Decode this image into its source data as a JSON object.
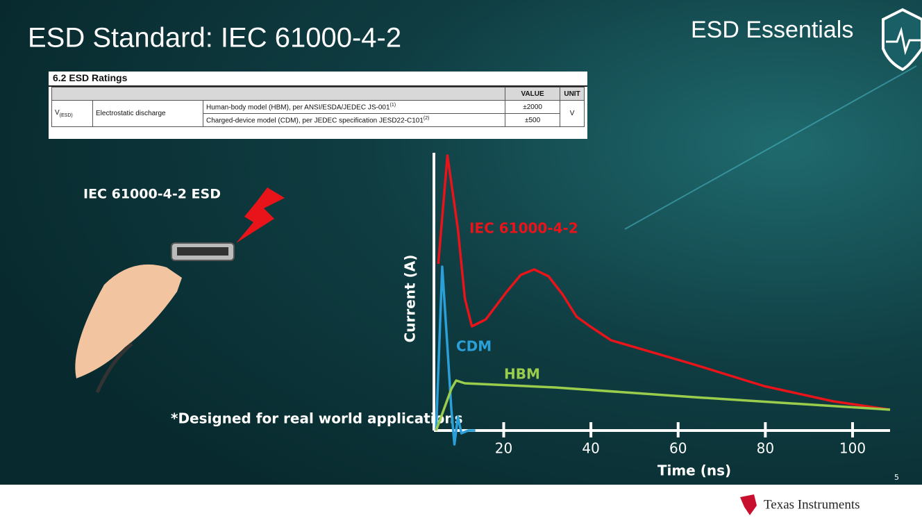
{
  "header": {
    "title": "ESD Standard: IEC 61000-4-2",
    "brand": "ESD Essentials"
  },
  "table": {
    "caption": "6.2 ESD Ratings",
    "headers": [
      "VALUE",
      "UNIT"
    ],
    "symbol": "V",
    "symbol_sub": "(ESD)",
    "parameter": "Electrostatic discharge",
    "rows": [
      {
        "condition": "Human-body model (HBM), per ANSI/ESDA/JEDEC JS-001",
        "note": "(1)",
        "value": "±2000"
      },
      {
        "condition": "Charged-device model (CDM), per JEDEC specification JESD22-C101",
        "note": "(2)",
        "value": "±500"
      }
    ],
    "unit": "V"
  },
  "illustration_label": "IEC 61000-4-2 ESD",
  "footnote": "*Designed for real world applications",
  "page_number": "5",
  "company": "Texas Instruments",
  "chart_data": {
    "type": "line",
    "x_label": "Time (ns)",
    "y_label": "Current (A)",
    "xlim": [
      4,
      108.6
    ],
    "xticks": [
      20,
      40,
      60,
      80,
      100
    ],
    "ylim": [
      -6,
      100
    ],
    "series": [
      {
        "name": "IEC 61000-4-2",
        "color": "#e8141a",
        "x": [
          5,
          7.1,
          9.5,
          11.1,
          12.7,
          15.9,
          20.7,
          23.9,
          27,
          30.3,
          33.5,
          36.7,
          39.8,
          44.6,
          63.7,
          79.7,
          95.6,
          108.6
        ],
        "values": [
          60,
          99,
          72.5,
          47.5,
          37.5,
          40,
          50,
          56,
          58,
          55.5,
          49,
          41,
          37.5,
          32.5,
          23.75,
          16,
          10.5,
          7.5
        ]
      },
      {
        "name": "CDM",
        "color": "#2a9fd8",
        "x": [
          4.5,
          5.9,
          7.1,
          8,
          8.7,
          9.5,
          10.3,
          11.9,
          13.5
        ],
        "values": [
          0,
          59,
          30,
          7.5,
          -5,
          5,
          -1,
          0,
          0
        ]
      },
      {
        "name": "HBM",
        "color": "#9acd4c",
        "x": [
          4.5,
          8,
          9.1,
          11.1,
          31.8,
          63.7,
          108.6
        ],
        "values": [
          0,
          15,
          18,
          17,
          15.5,
          12,
          7.5
        ]
      }
    ]
  }
}
